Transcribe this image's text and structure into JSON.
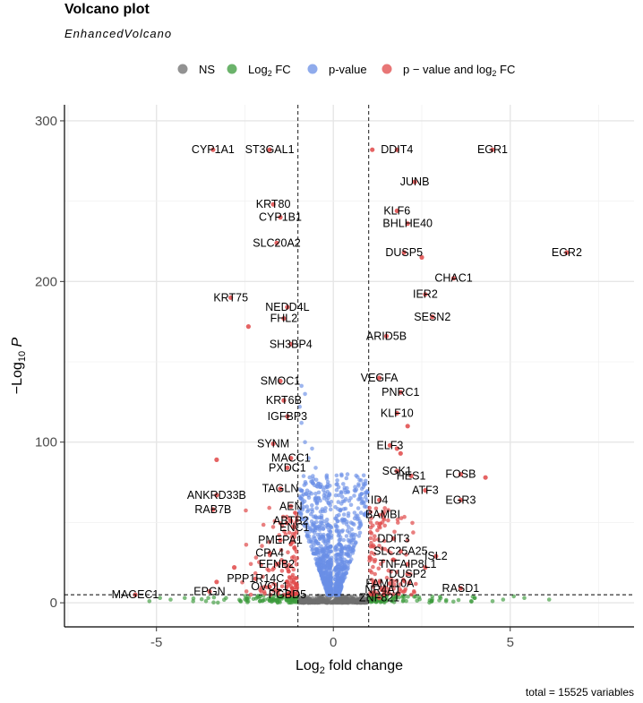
{
  "chart_data": {
    "type": "scatter",
    "title": "Volcano plot",
    "subtitle": "EnhancedVolcano",
    "xlabel": "Log2 fold change",
    "ylabel": "-Log10 P",
    "xlim": [
      -7.6,
      8.5
    ],
    "ylim": [
      -15,
      310
    ],
    "xticks": [
      -5,
      0,
      5
    ],
    "yticks": [
      0,
      100,
      200,
      300
    ],
    "grid": true,
    "fc_cutoff": 1,
    "p_cutoff": 5,
    "caption": "total = 15525 variables",
    "legend": {
      "position": "top",
      "items": [
        {
          "label": "NS",
          "color": "#6e6e6e"
        },
        {
          "label": "Log2 FC",
          "color": "#3a9a3a"
        },
        {
          "label": "p-value",
          "color": "#6a8fe6"
        },
        {
          "label": "p − value and log2 FC",
          "color": "#e04848"
        }
      ]
    },
    "series": [
      {
        "name": "p − value and log2 FC",
        "color": "#e04848",
        "points": [
          {
            "x": -3.4,
            "y": 282,
            "label": "CYP1A1"
          },
          {
            "x": -1.8,
            "y": 282,
            "label": "ST3GAL1"
          },
          {
            "x": 1.8,
            "y": 282,
            "label": "DDIT4"
          },
          {
            "x": 1.1,
            "y": 282
          },
          {
            "x": 4.5,
            "y": 282,
            "label": "EGR1"
          },
          {
            "x": 2.3,
            "y": 262,
            "label": "JUNB"
          },
          {
            "x": -1.7,
            "y": 248,
            "label": "KRT80"
          },
          {
            "x": -1.5,
            "y": 240,
            "label": "CYP1B1"
          },
          {
            "x": 1.8,
            "y": 244,
            "label": "KLF6"
          },
          {
            "x": 2.1,
            "y": 236,
            "label": "BHLHE40"
          },
          {
            "x": -1.6,
            "y": 224,
            "label": "SLC20A2"
          },
          {
            "x": 2.0,
            "y": 218,
            "label": "DUSP5"
          },
          {
            "x": 2.5,
            "y": 215
          },
          {
            "x": 6.6,
            "y": 218,
            "label": "EGR2"
          },
          {
            "x": 3.4,
            "y": 202,
            "label": "CHAC1"
          },
          {
            "x": -2.9,
            "y": 190,
            "label": "KRT75"
          },
          {
            "x": 2.6,
            "y": 192,
            "label": "IER2"
          },
          {
            "x": -1.3,
            "y": 184,
            "label": "NEDD4L"
          },
          {
            "x": -1.4,
            "y": 177,
            "label": "FHL2"
          },
          {
            "x": 2.8,
            "y": 178,
            "label": "SESN2"
          },
          {
            "x": -2.4,
            "y": 172
          },
          {
            "x": 1.5,
            "y": 166,
            "label": "ARID5B"
          },
          {
            "x": -1.2,
            "y": 161,
            "label": "SH3BP4"
          },
          {
            "x": 1.3,
            "y": 140,
            "label": "VEGFA"
          },
          {
            "x": 1.9,
            "y": 131,
            "label": "PNRC1"
          },
          {
            "x": -1.5,
            "y": 138,
            "label": "SMOC1"
          },
          {
            "x": -1.4,
            "y": 126,
            "label": "KRT6B"
          },
          {
            "x": -1.3,
            "y": 116,
            "label": "IGFBP3"
          },
          {
            "x": 1.8,
            "y": 118,
            "label": "KLF10"
          },
          {
            "x": 2.1,
            "y": 110
          },
          {
            "x": -1.7,
            "y": 99,
            "label": "SYNM"
          },
          {
            "x": 1.6,
            "y": 98,
            "label": "ELF3"
          },
          {
            "x": 1.8,
            "y": 96
          },
          {
            "x": 1.9,
            "y": 93
          },
          {
            "x": 1.8,
            "y": 82,
            "label": "SGK1"
          },
          {
            "x": -3.3,
            "y": 89
          },
          {
            "x": -1.2,
            "y": 90,
            "label": "MACC1"
          },
          {
            "x": -1.3,
            "y": 84,
            "label": "PXDC1"
          },
          {
            "x": 2.2,
            "y": 79,
            "label": "HES1"
          },
          {
            "x": 3.6,
            "y": 80,
            "label": "FOSB"
          },
          {
            "x": 4.3,
            "y": 78
          },
          {
            "x": 2.6,
            "y": 70,
            "label": "ATF3"
          },
          {
            "x": 3.6,
            "y": 64,
            "label": "EGR3"
          },
          {
            "x": -1.5,
            "y": 71,
            "label": "TAGLN"
          },
          {
            "x": -3.3,
            "y": 67,
            "label": "ANKRD33B"
          },
          {
            "x": -3.4,
            "y": 58,
            "label": "RAB7B"
          },
          {
            "x": -1.2,
            "y": 60,
            "label": "AEN"
          },
          {
            "x": 1.3,
            "y": 64,
            "label": "ID4"
          },
          {
            "x": 1.4,
            "y": 55,
            "label": "BAMBI"
          },
          {
            "x": -1.2,
            "y": 51,
            "label": "ABTB2"
          },
          {
            "x": -1.1,
            "y": 47,
            "label": "ENC1"
          },
          {
            "x": 1.7,
            "y": 40,
            "label": "DDIT3"
          },
          {
            "x": -1.5,
            "y": 39,
            "label": "PMEPA1"
          },
          {
            "x": -1.8,
            "y": 31,
            "label": "CPA4"
          },
          {
            "x": 1.9,
            "y": 32,
            "label": "SLC25A25"
          },
          {
            "x": 2.9,
            "y": 29,
            "label": "ISL2"
          },
          {
            "x": -1.6,
            "y": 24,
            "label": "EFNB2"
          },
          {
            "x": 2.1,
            "y": 24,
            "label": "TNFAIP8L1"
          },
          {
            "x": -2.2,
            "y": 15,
            "label": "PPP1R14C"
          },
          {
            "x": 2.1,
            "y": 18,
            "label": "DUSP2"
          },
          {
            "x": -1.8,
            "y": 10,
            "label": "OVOL1"
          },
          {
            "x": 1.6,
            "y": 12,
            "label": "FAM110A"
          },
          {
            "x": -3.5,
            "y": 7,
            "label": "EPGN"
          },
          {
            "x": -1.3,
            "y": 5,
            "label": "PGBD5"
          },
          {
            "x": 1.4,
            "y": 8,
            "label": "NR4A1"
          },
          {
            "x": 3.6,
            "y": 9,
            "label": "RASD1"
          },
          {
            "x": 1.3,
            "y": 3,
            "label": "ZNF821"
          },
          {
            "x": -5.6,
            "y": 5,
            "label": "MAGEC1"
          },
          {
            "x": -3.3,
            "y": 13
          },
          {
            "x": -2.8,
            "y": 22
          },
          {
            "x": 2.6,
            "y": 22
          }
        ]
      }
    ]
  }
}
